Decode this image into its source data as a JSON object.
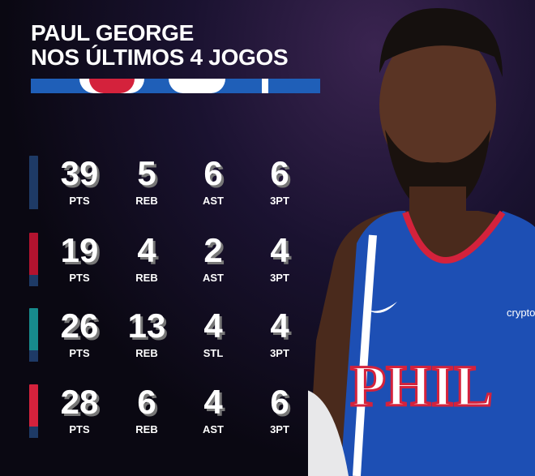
{
  "title": {
    "line1": "PAUL GEORGE",
    "line2": "NOS ÚLTIMOS 4 JOGOS"
  },
  "colors": {
    "banner_blue": "#1f5fb8",
    "banner_red": "#d4223c",
    "jersey_blue": "#1d4fb4"
  },
  "games": [
    {
      "logo": "wizards-logo",
      "logo_color": "#1e3a66",
      "stats": [
        {
          "value": "39",
          "label": "PTS"
        },
        {
          "value": "5",
          "label": "REB"
        },
        {
          "value": "6",
          "label": "AST"
        },
        {
          "value": "6",
          "label": "3PT"
        }
      ]
    },
    {
      "logo": "heat-logo",
      "logo_color": "#b3132f",
      "stats": [
        {
          "value": "19",
          "label": "PTS"
        },
        {
          "value": "4",
          "label": "REB"
        },
        {
          "value": "2",
          "label": "AST"
        },
        {
          "value": "4",
          "label": "3PT"
        }
      ]
    },
    {
      "logo": "hornets-logo",
      "logo_color": "#178a8c",
      "stats": [
        {
          "value": "26",
          "label": "PTS"
        },
        {
          "value": "13",
          "label": "REB"
        },
        {
          "value": "4",
          "label": "STL"
        },
        {
          "value": "4",
          "label": "3PT"
        }
      ]
    },
    {
      "logo": "raptors-logo",
      "logo_color": "#d4223c",
      "stats": [
        {
          "value": "28",
          "label": "PTS"
        },
        {
          "value": "6",
          "label": "REB"
        },
        {
          "value": "4",
          "label": "AST"
        },
        {
          "value": "6",
          "label": "3PT"
        }
      ]
    }
  ],
  "jersey": {
    "text": "PHIL",
    "sponsor": "crypto"
  }
}
